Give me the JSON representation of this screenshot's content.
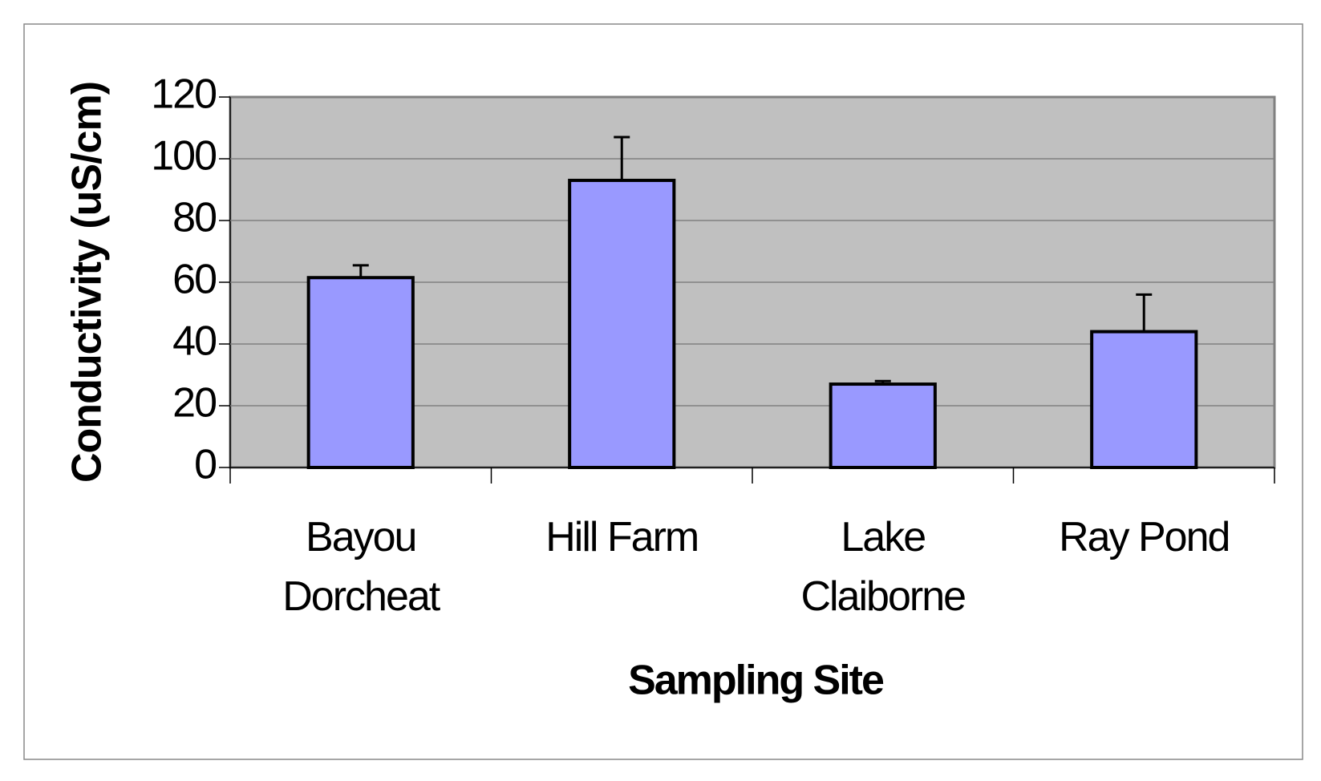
{
  "chart_data": {
    "type": "bar",
    "categories": [
      "Bayou Dorcheat",
      "Hill Farm",
      "Lake Claiborne",
      "Ray Pond"
    ],
    "values": [
      61.5,
      93,
      27,
      44
    ],
    "errors": [
      4,
      14,
      1,
      12
    ],
    "color": "#9999ff",
    "xlabel": "Sampling Site",
    "ylabel": "Conductivity (uS/cm)",
    "ylim": [
      0,
      120
    ],
    "yticks": [
      0,
      20,
      40,
      60,
      80,
      100,
      120
    ],
    "grid": true
  }
}
